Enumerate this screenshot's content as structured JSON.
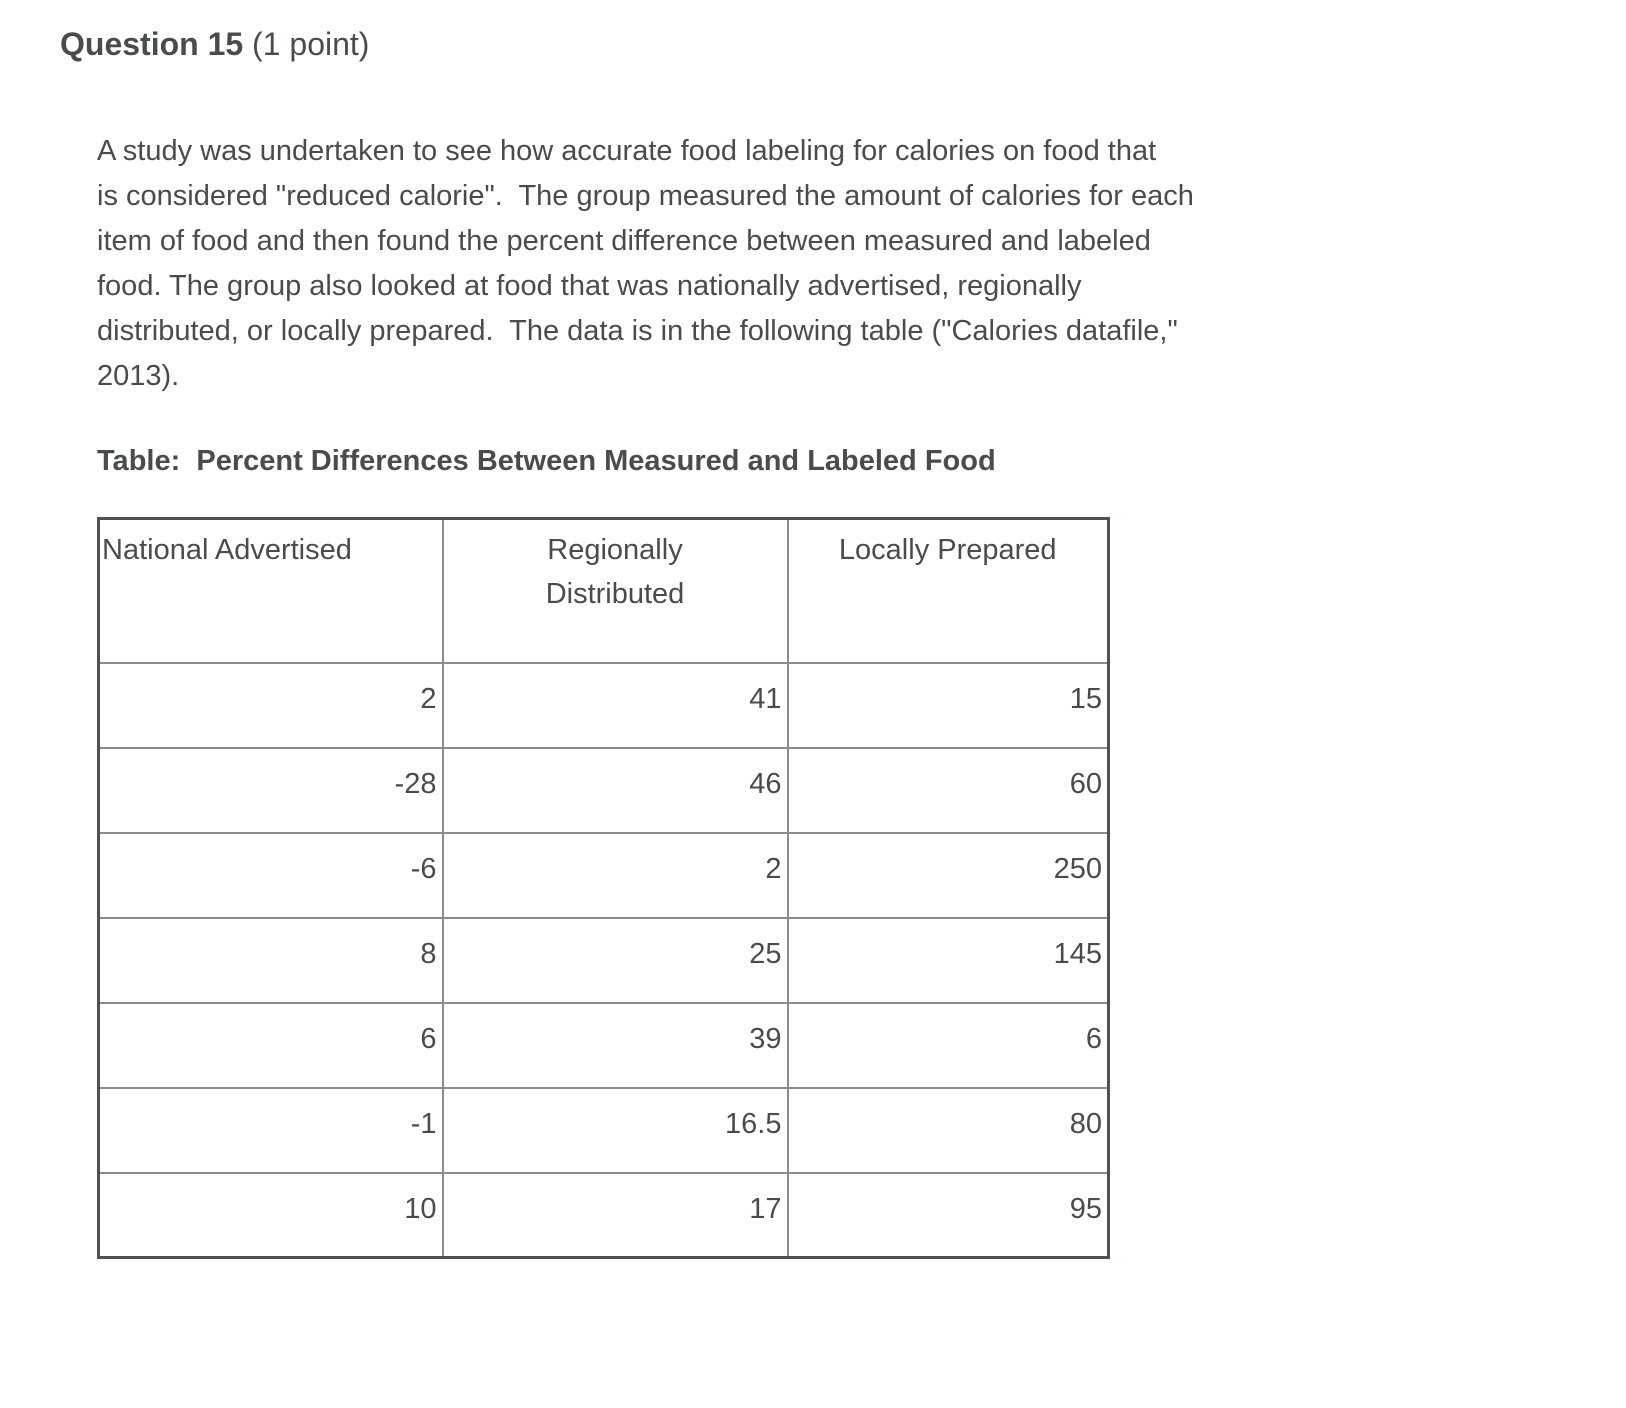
{
  "colors": {
    "text": "#494c4e",
    "border_outer": "#4f5254",
    "border_inner": "#898c8e"
  },
  "question": {
    "title": "Question 15",
    "points": "(1 point)",
    "body_lines": [
      "A study was undertaken to see how accurate food labeling for calories on food that",
      "is considered \"reduced calorie\".  The group measured the amount of calories for each",
      "item of food and then found the percent difference between measured and labeled",
      "food. The group also looked at food that was nationally advertised, regionally",
      "distributed, or locally prepared.  The data is in the following table (\"Calories datafile,\"",
      "2013)."
    ],
    "table_caption": "Table:  Percent Differences Between Measured and Labeled Food"
  },
  "table": {
    "columns": [
      "National Advertised",
      "Regionally\nDistributed",
      "Locally Prepared"
    ],
    "rows": [
      [
        "2",
        "41",
        "15"
      ],
      [
        "-28",
        "46",
        "60"
      ],
      [
        "-6",
        "2",
        "250"
      ],
      [
        "8",
        "25",
        "145"
      ],
      [
        "6",
        "39",
        "6"
      ],
      [
        "-1",
        "16.5",
        "80"
      ],
      [
        "10",
        "17",
        "95"
      ]
    ]
  }
}
